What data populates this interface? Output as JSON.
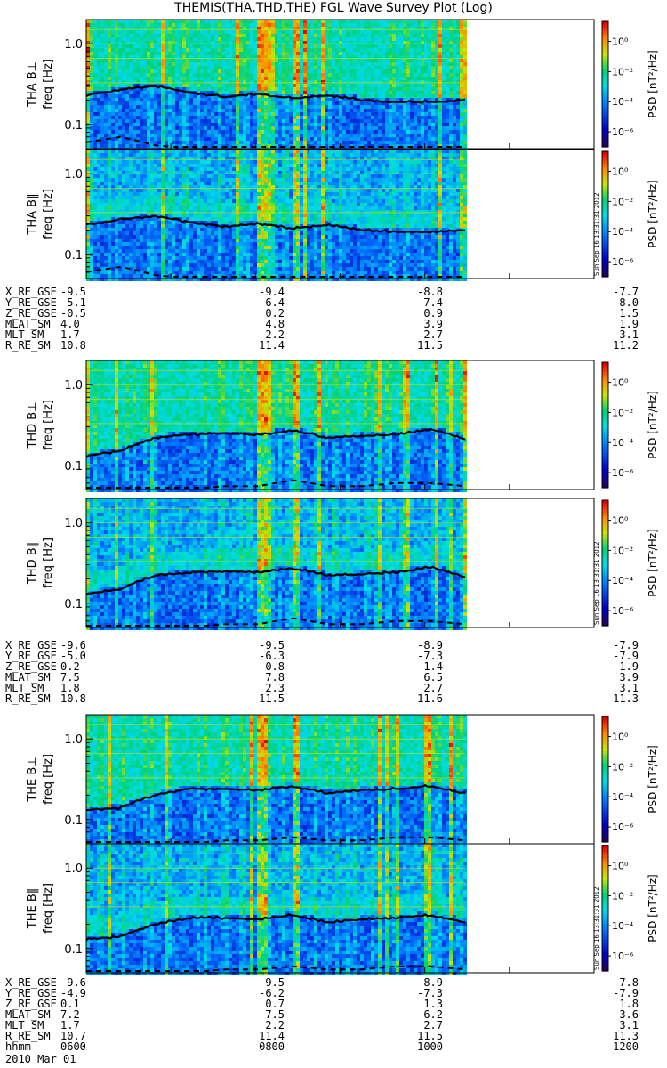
{
  "title": "THEMIS(THA,THD,THE) FGL Wave Survey Plot (Log)",
  "colorbar": {
    "label": "PSD [nT²/Hz]",
    "ticks": [
      "10⁰",
      "10⁻²",
      "10⁻⁴",
      "10⁻⁶"
    ],
    "stamp": "Sun Sep 16 13:31:31 2012"
  },
  "colors": {
    "line": "#000000",
    "background": "#ffffff"
  },
  "chart_data": {
    "type": "heatmap",
    "x_axis": {
      "ticks": [
        "0600",
        "0800",
        "1000",
        "1200"
      ],
      "range": [
        "0600",
        "1200"
      ]
    },
    "y_axis": {
      "scale": "log",
      "ylabel": "freq [Hz]",
      "ticks": [
        "1.0",
        "0.1"
      ]
    },
    "panels": [
      {
        "probe": "THA",
        "component": "THA B⊥",
        "ylabel": "freq [Hz]",
        "data_ends": "1000"
      },
      {
        "probe": "THA",
        "component": "THA B‖",
        "ylabel": "freq [Hz]",
        "data_ends": "1000"
      },
      {
        "probe": "THD",
        "component": "THD B⊥",
        "ylabel": "freq [Hz]",
        "data_ends": "1000"
      },
      {
        "probe": "THD",
        "component": "THD B‖",
        "ylabel": "freq [Hz]",
        "data_ends": "1000"
      },
      {
        "probe": "THE",
        "component": "THE B⊥",
        "ylabel": "freq [Hz]",
        "data_ends": "1000"
      },
      {
        "probe": "THE",
        "component": "THE B‖",
        "ylabel": "freq [Hz]",
        "data_ends": "1000"
      }
    ],
    "cyclotron_line_hz": {
      "THA": [
        0.23,
        0.27,
        0.3,
        0.25,
        0.22,
        0.24,
        0.21,
        0.23,
        0.2,
        0.19,
        0.19,
        0.2
      ],
      "THD": [
        0.13,
        0.15,
        0.22,
        0.24,
        0.25,
        0.24,
        0.27,
        0.22,
        0.23,
        0.24,
        0.28,
        0.21
      ],
      "THE": [
        0.13,
        0.14,
        0.2,
        0.24,
        0.24,
        0.23,
        0.26,
        0.21,
        0.23,
        0.24,
        0.26,
        0.21
      ]
    },
    "helium_line_hz": {
      "THA": [
        0.06,
        0.07,
        0.055,
        0.05,
        0.05,
        0.05,
        0.05,
        0.05,
        0.05,
        0.05,
        0.05,
        0.05
      ],
      "THD": [
        0.045,
        0.045,
        0.05,
        0.05,
        0.055,
        0.055,
        0.065,
        0.055,
        0.055,
        0.06,
        0.06,
        0.055
      ],
      "THE": [
        0.045,
        0.045,
        0.05,
        0.05,
        0.055,
        0.055,
        0.06,
        0.055,
        0.055,
        0.06,
        0.06,
        0.055
      ]
    }
  },
  "ephemeris": [
    {
      "probe": "THA",
      "rows": [
        {
          "label": "X_RE_GSE",
          "values": [
            "-9.5",
            "-9.4",
            "-8.8",
            "-7.7"
          ]
        },
        {
          "label": "Y_RE_GSE",
          "values": [
            "-5.1",
            "-6.4",
            "-7.4",
            "-8.0"
          ]
        },
        {
          "label": "Z_RE_GSE",
          "values": [
            "-0.5",
            "0.2",
            "0.9",
            "1.5"
          ]
        },
        {
          "label": "MLAT_SM",
          "values": [
            "4.0",
            "4.8",
            "3.9",
            "1.9"
          ]
        },
        {
          "label": "MLT_SM",
          "values": [
            "1.7",
            "2.2",
            "2.7",
            "3.1"
          ]
        },
        {
          "label": "R_RE_SM",
          "values": [
            "10.8",
            "11.4",
            "11.5",
            "11.2"
          ]
        }
      ]
    },
    {
      "probe": "THD",
      "rows": [
        {
          "label": "X_RE_GSE",
          "values": [
            "-9.6",
            "-9.5",
            "-8.9",
            "-7.9"
          ]
        },
        {
          "label": "Y_RE_GSE",
          "values": [
            "-5.0",
            "-6.3",
            "-7.3",
            "-7.9"
          ]
        },
        {
          "label": "Z_RE_GSE",
          "values": [
            "0.2",
            "0.8",
            "1.4",
            "1.9"
          ]
        },
        {
          "label": "MLAT_SM",
          "values": [
            "7.5",
            "7.8",
            "6.5",
            "3.9"
          ]
        },
        {
          "label": "MLT_SM",
          "values": [
            "1.8",
            "2.3",
            "2.7",
            "3.1"
          ]
        },
        {
          "label": "R_RE_SM",
          "values": [
            "10.8",
            "11.5",
            "11.6",
            "11.3"
          ]
        }
      ]
    },
    {
      "probe": "THE",
      "rows": [
        {
          "label": "X_RE_GSE",
          "values": [
            "-9.6",
            "-9.5",
            "-8.9",
            "-7.8"
          ]
        },
        {
          "label": "Y_RE_GSE",
          "values": [
            "-4.9",
            "-6.2",
            "-7.3",
            "-7.9"
          ]
        },
        {
          "label": "Z_RE_GSE",
          "values": [
            "0.1",
            "0.7",
            "1.3",
            "1.8"
          ]
        },
        {
          "label": "MLAT_SM",
          "values": [
            "7.2",
            "7.5",
            "6.2",
            "3.6"
          ]
        },
        {
          "label": "MLT_SM",
          "values": [
            "1.7",
            "2.2",
            "2.7",
            "3.1"
          ]
        },
        {
          "label": "R_RE_SM",
          "values": [
            "10.7",
            "11.4",
            "11.5",
            "11.3"
          ]
        },
        {
          "label": "hhmm",
          "values": [
            "0600",
            "0800",
            "1000",
            "1200"
          ]
        }
      ]
    }
  ],
  "date_label": "2010 Mar 01"
}
